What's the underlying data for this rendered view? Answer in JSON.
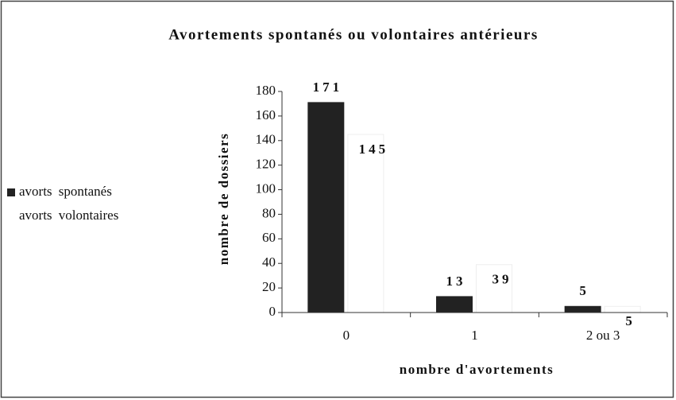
{
  "chart_data": {
    "type": "bar",
    "title": "Avortements spontanés ou volontaires antérieurs",
    "y_label": "nombre de dossiers",
    "x_label": "nombre d'avortements",
    "categories": [
      "0",
      "1",
      "2 ou 3"
    ],
    "series": [
      {
        "name": "avorts spontanés",
        "color": "#222222",
        "values": [
          171,
          13,
          5
        ]
      },
      {
        "name": "avorts volontaires",
        "color": "#ffffff",
        "values": [
          145,
          39,
          5
        ]
      }
    ],
    "ylim": [
      0,
      180
    ],
    "yticks": [
      0,
      20,
      40,
      60,
      80,
      100,
      120,
      140,
      160,
      180
    ],
    "legend": "left"
  }
}
